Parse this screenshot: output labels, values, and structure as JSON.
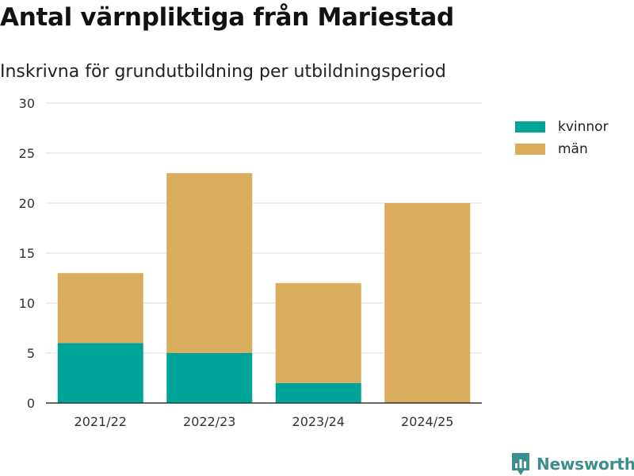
{
  "title": "Antal värnpliktiga från Mariestad",
  "subtitle": "Inskrivna för grundutbildning per utbildningsperiod",
  "brand": {
    "name": "Newsworthy",
    "icon": "newsworthy-logo-icon",
    "color": "#3d8f8d"
  },
  "colors": {
    "kvinnor": "#00a39a",
    "man": "#d9ad5b",
    "grid": "#dddddd",
    "axis": "#333333"
  },
  "chart_data": {
    "type": "bar",
    "stacked": true,
    "categories": [
      "2021/22",
      "2022/23",
      "2023/24",
      "2024/25"
    ],
    "series": [
      {
        "name": "kvinnor",
        "values": [
          6,
          5,
          2,
          0
        ],
        "color": "#00a39a"
      },
      {
        "name": "män",
        "values": [
          7,
          18,
          10,
          20
        ],
        "color": "#d9ad5b"
      }
    ],
    "title": "Antal värnpliktiga från Mariestad",
    "subtitle": "Inskrivna för grundutbildning per utbildningsperiod",
    "xlabel": "",
    "ylabel": "",
    "ylim": [
      0,
      30
    ],
    "yticks": [
      0,
      5,
      10,
      15,
      20,
      25,
      30
    ],
    "grid": true,
    "legend": "right"
  }
}
